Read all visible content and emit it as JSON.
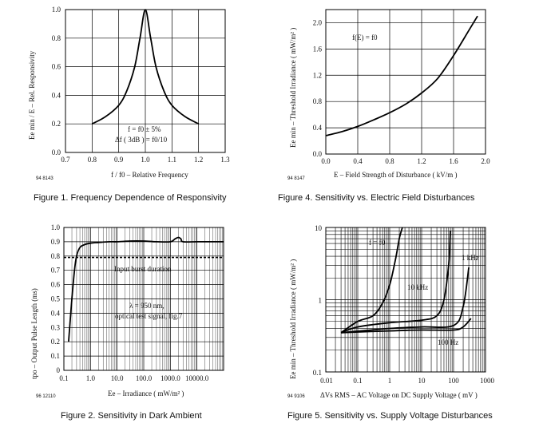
{
  "figures": {
    "fig1": {
      "caption": "Figure 1.  Frequency Dependence of Responsivity",
      "code": "94 8143",
      "annotation": [
        "f = f0 ± 5%",
        "Δf ( 3dB ) = f0/10"
      ]
    },
    "fig2": {
      "caption": "Figure 2.  Sensitivity in Dark Ambient",
      "code": "96 12110",
      "annotation": [
        "λ = 950 nm,",
        "optical test signal, fig.7"
      ],
      "burst_label": "Input burst duration"
    },
    "fig4": {
      "caption": "Figure 4.  Sensitivity vs. Electric Field Disturbances",
      "code": "94 8147",
      "annotation": "f(E) = f0"
    },
    "fig5": {
      "caption": "Figure 5.  Sensitivity vs. Supply Voltage Disturbances",
      "code": "94 9106",
      "labels": [
        "f = f0",
        "10 kHz",
        "1 kHz",
        "100 Hz"
      ]
    }
  },
  "chart_data": [
    {
      "id": "fig1",
      "type": "line",
      "title": "Frequency Dependence of Responsivity",
      "xlabel": "f / f0 – Relative Frequency",
      "ylabel": "Ee min / E – Rel. Responsivity",
      "xlim": [
        0.7,
        1.3
      ],
      "ylim": [
        0,
        1.0
      ],
      "xticks": [
        "0.7",
        "0.8",
        "0.9",
        "1.0",
        "1.1",
        "1.2",
        "1.3"
      ],
      "yticks": [
        "0.0",
        "0.2",
        "0.4",
        "0.6",
        "0.8",
        "1.0"
      ],
      "series": [
        {
          "name": "response",
          "x": [
            0.8,
            0.85,
            0.9,
            0.93,
            0.96,
            0.98,
            1.0,
            1.02,
            1.04,
            1.07,
            1.1,
            1.15,
            1.2
          ],
          "y": [
            0.2,
            0.25,
            0.33,
            0.43,
            0.6,
            0.8,
            1.0,
            0.8,
            0.6,
            0.43,
            0.33,
            0.25,
            0.2
          ]
        }
      ]
    },
    {
      "id": "fig2",
      "type": "line",
      "title": "Sensitivity in Dark Ambient",
      "xlabel": "Ee – Irradiance ( mW/m² )",
      "ylabel": "tpo – Output Pulse Length (ms)",
      "xscale": "log",
      "xlim": [
        0.1,
        100000.0
      ],
      "ylim": [
        0,
        1.0
      ],
      "xticks": [
        "0.1",
        "1.0",
        "10.0",
        "100.0",
        "1000.0",
        "10000.0"
      ],
      "yticks": [
        "0",
        "0.1",
        "0.2",
        "0.3",
        "0.4",
        "0.5",
        "0.6",
        "0.7",
        "0.8",
        "0.9",
        "1.0"
      ],
      "reference_line": {
        "name": "Input burst duration",
        "y": 0.79
      },
      "series": [
        {
          "name": "output pulse length",
          "x": [
            0.15,
            0.2,
            0.25,
            0.3,
            0.4,
            0.6,
            1.0,
            2,
            5,
            10,
            30,
            100,
            300,
            1000,
            1500,
            2000,
            2500,
            3000,
            10000,
            30000,
            100000
          ],
          "y": [
            0.2,
            0.5,
            0.7,
            0.8,
            0.86,
            0.88,
            0.89,
            0.895,
            0.9,
            0.9,
            0.905,
            0.905,
            0.9,
            0.9,
            0.92,
            0.93,
            0.92,
            0.9,
            0.9,
            0.9,
            0.9
          ]
        }
      ]
    },
    {
      "id": "fig4",
      "type": "line",
      "title": "Sensitivity vs. Electric Field Disturbances",
      "xlabel": "E – Field Strength of Disturbance ( kV/m )",
      "ylabel": "Ee min – Threshold Irradiance ( mW/m² )",
      "xlim": [
        0.0,
        2.0
      ],
      "ylim": [
        0.0,
        2.2
      ],
      "xticks": [
        "0.0",
        "0.4",
        "0.8",
        "1.2",
        "1.6",
        "2.0"
      ],
      "yticks": [
        "0.0",
        "0.4",
        "0.8",
        "1.2",
        "1.6",
        "2.0"
      ],
      "series": [
        {
          "name": "f(E) = f0",
          "x": [
            0.0,
            0.2,
            0.4,
            0.6,
            0.8,
            1.0,
            1.2,
            1.4,
            1.6,
            1.8,
            1.9
          ],
          "y": [
            0.28,
            0.34,
            0.42,
            0.52,
            0.63,
            0.76,
            0.93,
            1.15,
            1.5,
            1.9,
            2.1
          ]
        }
      ]
    },
    {
      "id": "fig5",
      "type": "line",
      "title": "Sensitivity vs. Supply Voltage Disturbances",
      "xlabel": "ΔVs RMS – AC Voltage on DC Supply Voltage ( mV )",
      "ylabel": "Ee min – Threshold Irradiance ( mW/m² )",
      "xscale": "log",
      "yscale": "log",
      "xlim": [
        0.01,
        1000
      ],
      "ylim": [
        0.1,
        10
      ],
      "xticks": [
        "0.01",
        "0.1",
        "1",
        "10",
        "100",
        "1000"
      ],
      "yticks": [
        "0.1",
        "1",
        "10"
      ],
      "series": [
        {
          "name": "f = f0",
          "x": [
            0.03,
            0.1,
            0.3,
            0.6,
            1.0,
            1.5,
            2.0,
            2.5
          ],
          "y": [
            0.35,
            0.5,
            0.6,
            0.9,
            1.6,
            3.5,
            7.0,
            10
          ]
        },
        {
          "name": "10 kHz",
          "x": [
            0.03,
            0.1,
            1,
            10,
            30,
            50,
            70,
            80
          ],
          "y": [
            0.35,
            0.42,
            0.48,
            0.52,
            0.6,
            1.0,
            3.0,
            9.0
          ]
        },
        {
          "name": "1 kHz",
          "x": [
            0.03,
            1,
            10,
            100,
            200,
            300
          ],
          "y": [
            0.35,
            0.4,
            0.42,
            0.44,
            0.8,
            2.8
          ]
        },
        {
          "name": "100 Hz",
          "x": [
            0.03,
            1,
            10,
            100,
            200,
            350
          ],
          "y": [
            0.35,
            0.37,
            0.38,
            0.38,
            0.42,
            0.55
          ]
        }
      ]
    }
  ]
}
